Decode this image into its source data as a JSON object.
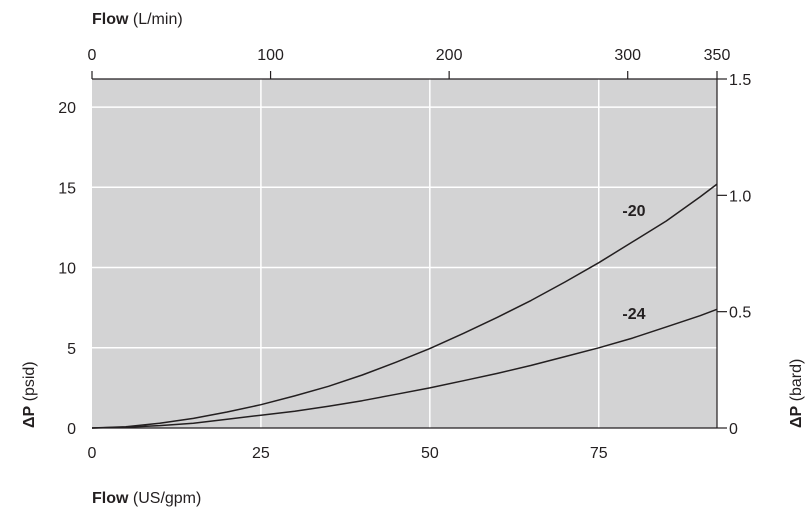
{
  "chart_data": {
    "type": "line",
    "plot_background": "#d3d3d4",
    "grid_color": "#ffffff",
    "line_color": "#231f20",
    "grid": true,
    "x_axis_bottom": {
      "label_bold": "Flow",
      "label_rest": " (US/gpm)",
      "range": [
        0,
        92.5
      ],
      "ticks": [
        0,
        25,
        50,
        75
      ],
      "tick_labels": [
        "0",
        "25",
        "50",
        "75"
      ]
    },
    "x_axis_top": {
      "label_bold": "Flow",
      "label_rest": " (L/min)",
      "range": [
        0,
        350
      ],
      "ticks": [
        0,
        100,
        200,
        300,
        350
      ],
      "tick_labels": [
        "0",
        "100",
        "200",
        "300",
        "350"
      ]
    },
    "y_axis_left": {
      "label_bold": "ΔP",
      "label_rest": " (psid)",
      "range": [
        0,
        21.75
      ],
      "ticks": [
        0,
        5,
        10,
        15,
        20
      ],
      "tick_labels": [
        "0",
        "5",
        "10",
        "15",
        "20"
      ]
    },
    "y_axis_right": {
      "label_bold": "ΔP",
      "label_rest": " (bard)",
      "range": [
        0,
        1.5
      ],
      "ticks": [
        0,
        0.5,
        1.0,
        1.5
      ],
      "tick_labels": [
        "0",
        "0.5",
        "1.0",
        "1.5"
      ]
    },
    "series": [
      {
        "name": "-20",
        "x": [
          0,
          5,
          10,
          15,
          20,
          25,
          30,
          35,
          40,
          45,
          50,
          55,
          60,
          65,
          70,
          75,
          80,
          85,
          90,
          92.5
        ],
        "y": [
          0,
          0.08,
          0.3,
          0.6,
          1.0,
          1.45,
          2.0,
          2.6,
          3.3,
          4.1,
          4.95,
          5.9,
          6.9,
          7.95,
          9.1,
          10.3,
          11.6,
          12.9,
          14.4,
          15.2
        ]
      },
      {
        "name": "-24",
        "x": [
          0,
          5,
          10,
          15,
          20,
          25,
          30,
          35,
          40,
          45,
          50,
          55,
          60,
          65,
          70,
          75,
          80,
          85,
          90,
          92.5
        ],
        "y": [
          0,
          0.05,
          0.15,
          0.3,
          0.55,
          0.8,
          1.05,
          1.35,
          1.7,
          2.1,
          2.5,
          2.95,
          3.4,
          3.9,
          4.45,
          5.0,
          5.6,
          6.3,
          7.0,
          7.4
        ]
      }
    ],
    "series_labels": [
      {
        "text": "-20",
        "at_x": 78.5,
        "at_y": 13.2
      },
      {
        "text": "-24",
        "at_x": 78.5,
        "at_y": 6.8
      }
    ]
  }
}
